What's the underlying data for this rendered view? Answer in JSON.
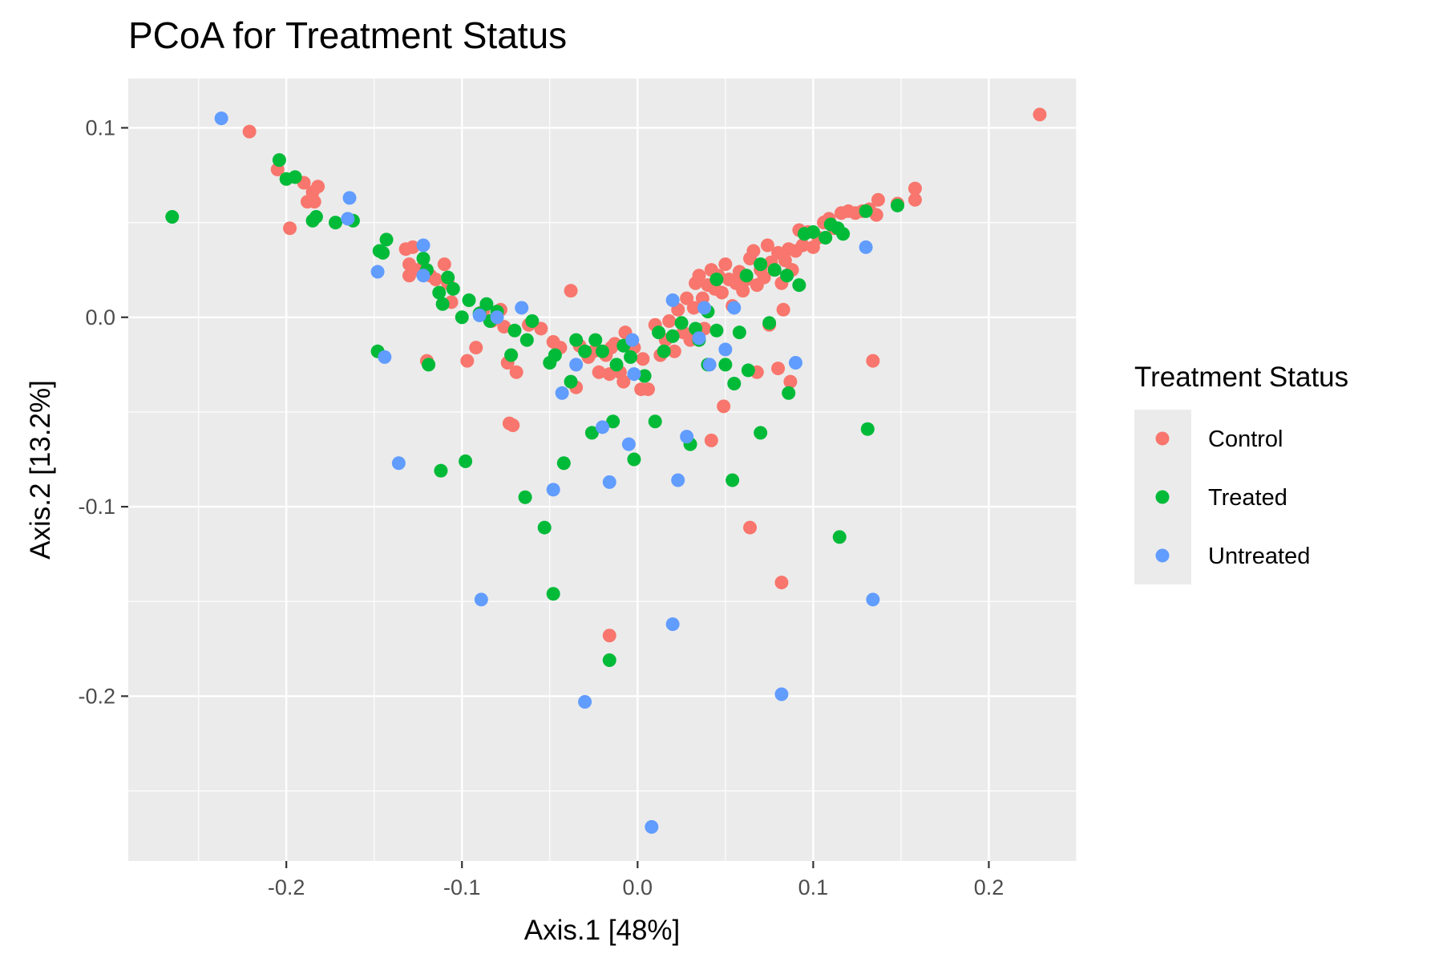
{
  "chart_data": {
    "type": "scatter",
    "title": "PCoA for Treatment Status",
    "xlabel": "Axis.1   [48%]",
    "ylabel": "Axis.2   [13.2%]",
    "xlim": [
      -0.29,
      0.25
    ],
    "ylim": [
      -0.287,
      0.126
    ],
    "x_ticks": [
      -0.2,
      -0.1,
      0.0,
      0.1,
      0.2
    ],
    "x_tick_labels": [
      "-0.2",
      "-0.1",
      "0.0",
      "0.1",
      "0.2"
    ],
    "y_ticks": [
      0.1,
      0.0,
      -0.1,
      -0.2
    ],
    "y_tick_labels": [
      "0.1",
      "0.0",
      "-0.1",
      "-0.2"
    ],
    "grid": true,
    "legend": {
      "title": "Treatment Status",
      "position": "right"
    },
    "series": [
      {
        "name": "Control",
        "color": "#F8766D",
        "points": [
          [
            0.229,
            0.107
          ],
          [
            -0.221,
            0.098
          ],
          [
            -0.205,
            0.078
          ],
          [
            -0.198,
            0.047
          ],
          [
            -0.19,
            0.071
          ],
          [
            -0.188,
            0.061
          ],
          [
            -0.185,
            0.066
          ],
          [
            -0.184,
            0.061
          ],
          [
            -0.182,
            0.069
          ],
          [
            -0.132,
            0.036
          ],
          [
            -0.13,
            0.028
          ],
          [
            -0.13,
            0.022
          ],
          [
            -0.128,
            0.037
          ],
          [
            -0.125,
            0.025
          ],
          [
            -0.118,
            0.022
          ],
          [
            -0.115,
            0.02
          ],
          [
            -0.11,
            0.028
          ],
          [
            -0.108,
            0.018
          ],
          [
            -0.106,
            0.008
          ],
          [
            -0.097,
            -0.023
          ],
          [
            -0.092,
            -0.016
          ],
          [
            -0.088,
            0.003
          ],
          [
            -0.083,
            -0.002
          ],
          [
            -0.078,
            0.004
          ],
          [
            -0.076,
            -0.005
          ],
          [
            -0.074,
            -0.024
          ],
          [
            -0.073,
            -0.056
          ],
          [
            -0.071,
            -0.057
          ],
          [
            -0.069,
            -0.029
          ],
          [
            -0.062,
            -0.004
          ],
          [
            -0.055,
            -0.006
          ],
          [
            -0.048,
            -0.013
          ],
          [
            -0.044,
            -0.016
          ],
          [
            -0.038,
            0.014
          ],
          [
            -0.035,
            -0.037
          ],
          [
            -0.033,
            -0.015
          ],
          [
            -0.028,
            -0.021
          ],
          [
            -0.025,
            -0.018
          ],
          [
            -0.022,
            -0.029
          ],
          [
            -0.018,
            -0.02
          ],
          [
            -0.015,
            -0.016
          ],
          [
            -0.013,
            -0.014
          ],
          [
            -0.016,
            -0.03
          ],
          [
            -0.01,
            -0.029
          ],
          [
            -0.008,
            -0.034
          ],
          [
            -0.007,
            -0.008
          ],
          [
            -0.002,
            -0.016
          ],
          [
            0.002,
            -0.038
          ],
          [
            0.003,
            -0.022
          ],
          [
            0.006,
            -0.038
          ],
          [
            0.01,
            -0.004
          ],
          [
            0.013,
            -0.02
          ],
          [
            0.016,
            -0.012
          ],
          [
            0.018,
            -0.002
          ],
          [
            0.021,
            -0.018
          ],
          [
            0.023,
            0.004
          ],
          [
            0.026,
            -0.008
          ],
          [
            0.028,
            0.01
          ],
          [
            0.03,
            -0.012
          ],
          [
            0.032,
            0.005
          ],
          [
            0.033,
            0.018
          ],
          [
            0.035,
            0.022
          ],
          [
            0.037,
            0.01
          ],
          [
            0.038,
            -0.006
          ],
          [
            0.04,
            0.017
          ],
          [
            0.042,
            0.025
          ],
          [
            0.044,
            0.015
          ],
          [
            0.046,
            0.022
          ],
          [
            0.048,
            0.013
          ],
          [
            0.05,
            0.028
          ],
          [
            0.052,
            0.02
          ],
          [
            0.054,
            0.006
          ],
          [
            0.056,
            0.018
          ],
          [
            0.058,
            0.024
          ],
          [
            0.06,
            0.014
          ],
          [
            0.062,
            0.02
          ],
          [
            0.064,
            0.031
          ],
          [
            0.066,
            0.035
          ],
          [
            0.068,
            0.017
          ],
          [
            0.07,
            0.025
          ],
          [
            0.072,
            0.021
          ],
          [
            0.074,
            0.038
          ],
          [
            0.076,
            0.029
          ],
          [
            0.078,
            0.025
          ],
          [
            0.08,
            0.034
          ],
          [
            0.082,
            0.018
          ],
          [
            0.084,
            0.03
          ],
          [
            0.086,
            0.036
          ],
          [
            0.088,
            0.025
          ],
          [
            0.09,
            0.035
          ],
          [
            0.092,
            0.046
          ],
          [
            0.094,
            0.038
          ],
          [
            0.097,
            0.045
          ],
          [
            0.1,
            0.037
          ],
          [
            0.103,
            0.042
          ],
          [
            0.106,
            0.05
          ],
          [
            0.109,
            0.052
          ],
          [
            0.112,
            0.047
          ],
          [
            0.116,
            0.055
          ],
          [
            0.12,
            0.056
          ],
          [
            0.124,
            0.055
          ],
          [
            0.128,
            0.056
          ],
          [
            0.132,
            0.057
          ],
          [
            0.136,
            0.054
          ],
          [
            0.137,
            0.062
          ],
          [
            0.148,
            0.06
          ],
          [
            0.158,
            0.068
          ],
          [
            0.158,
            0.062
          ],
          [
            0.042,
            -0.065
          ],
          [
            0.049,
            -0.047
          ],
          [
            0.064,
            -0.111
          ],
          [
            0.068,
            -0.029
          ],
          [
            0.075,
            -0.004
          ],
          [
            0.08,
            -0.027
          ],
          [
            0.082,
            -0.14
          ],
          [
            0.083,
            0.004
          ],
          [
            0.087,
            -0.034
          ],
          [
            0.134,
            -0.023
          ],
          [
            -0.016,
            -0.168
          ],
          [
            -0.12,
            -0.023
          ]
        ]
      },
      {
        "name": "Treated",
        "color": "#00BA38",
        "points": [
          [
            -0.265,
            0.053
          ],
          [
            -0.204,
            0.083
          ],
          [
            -0.2,
            0.073
          ],
          [
            -0.195,
            0.074
          ],
          [
            -0.183,
            0.053
          ],
          [
            -0.185,
            0.051
          ],
          [
            -0.172,
            0.05
          ],
          [
            -0.162,
            0.051
          ],
          [
            -0.148,
            -0.018
          ],
          [
            -0.147,
            0.035
          ],
          [
            -0.145,
            0.034
          ],
          [
            -0.143,
            0.041
          ],
          [
            -0.122,
            0.031
          ],
          [
            -0.12,
            0.025
          ],
          [
            -0.119,
            -0.025
          ],
          [
            -0.113,
            0.013
          ],
          [
            -0.112,
            -0.081
          ],
          [
            -0.111,
            0.007
          ],
          [
            -0.108,
            0.021
          ],
          [
            -0.105,
            0.015
          ],
          [
            -0.1,
            0.0
          ],
          [
            -0.098,
            -0.076
          ],
          [
            -0.096,
            0.009
          ],
          [
            -0.09,
            0.002
          ],
          [
            -0.086,
            0.007
          ],
          [
            -0.084,
            -0.002
          ],
          [
            -0.08,
            0.003
          ],
          [
            -0.072,
            -0.02
          ],
          [
            -0.07,
            -0.007
          ],
          [
            -0.064,
            -0.095
          ],
          [
            -0.063,
            -0.012
          ],
          [
            -0.06,
            -0.002
          ],
          [
            -0.053,
            -0.111
          ],
          [
            -0.05,
            -0.024
          ],
          [
            -0.048,
            -0.146
          ],
          [
            -0.047,
            -0.02
          ],
          [
            -0.042,
            -0.077
          ],
          [
            -0.038,
            -0.034
          ],
          [
            -0.035,
            -0.012
          ],
          [
            -0.03,
            -0.018
          ],
          [
            -0.026,
            -0.061
          ],
          [
            -0.024,
            -0.012
          ],
          [
            -0.02,
            -0.018
          ],
          [
            -0.016,
            -0.181
          ],
          [
            -0.014,
            -0.055
          ],
          [
            -0.012,
            -0.025
          ],
          [
            -0.008,
            -0.015
          ],
          [
            -0.004,
            -0.021
          ],
          [
            -0.002,
            -0.075
          ],
          [
            0.004,
            -0.031
          ],
          [
            0.01,
            -0.055
          ],
          [
            0.012,
            -0.008
          ],
          [
            0.015,
            -0.018
          ],
          [
            0.02,
            -0.01
          ],
          [
            0.025,
            -0.003
          ],
          [
            0.03,
            -0.067
          ],
          [
            0.035,
            -0.012
          ],
          [
            0.04,
            -0.025
          ],
          [
            0.045,
            -0.007
          ],
          [
            0.05,
            -0.025
          ],
          [
            0.054,
            -0.086
          ],
          [
            0.055,
            -0.035
          ],
          [
            0.058,
            -0.008
          ],
          [
            0.063,
            -0.028
          ],
          [
            0.07,
            -0.061
          ],
          [
            0.075,
            -0.003
          ],
          [
            0.086,
            -0.04
          ],
          [
            0.092,
            0.017
          ],
          [
            0.095,
            0.044
          ],
          [
            0.1,
            0.045
          ],
          [
            0.107,
            0.042
          ],
          [
            0.11,
            0.049
          ],
          [
            0.114,
            0.047
          ],
          [
            0.117,
            0.044
          ],
          [
            0.13,
            0.056
          ],
          [
            0.131,
            -0.059
          ],
          [
            0.115,
            -0.116
          ],
          [
            0.148,
            0.059
          ],
          [
            0.062,
            0.022
          ],
          [
            0.07,
            0.028
          ],
          [
            0.078,
            0.025
          ],
          [
            0.085,
            0.022
          ],
          [
            0.045,
            0.02
          ],
          [
            0.04,
            0.003
          ],
          [
            0.033,
            -0.006
          ]
        ]
      },
      {
        "name": "Untreated",
        "color": "#619CFF",
        "points": [
          [
            -0.237,
            0.105
          ],
          [
            -0.164,
            0.063
          ],
          [
            -0.165,
            0.052
          ],
          [
            -0.148,
            0.024
          ],
          [
            -0.144,
            -0.021
          ],
          [
            -0.136,
            -0.077
          ],
          [
            -0.122,
            0.038
          ],
          [
            -0.122,
            0.022
          ],
          [
            -0.09,
            0.001
          ],
          [
            -0.089,
            -0.149
          ],
          [
            -0.08,
            0.0
          ],
          [
            -0.066,
            0.005
          ],
          [
            -0.048,
            -0.091
          ],
          [
            -0.043,
            -0.04
          ],
          [
            -0.03,
            -0.203
          ],
          [
            -0.035,
            -0.025
          ],
          [
            -0.02,
            -0.058
          ],
          [
            -0.016,
            -0.087
          ],
          [
            -0.005,
            -0.067
          ],
          [
            -0.003,
            -0.012
          ],
          [
            -0.002,
            -0.03
          ],
          [
            0.008,
            -0.269
          ],
          [
            0.02,
            -0.162
          ],
          [
            0.02,
            0.009
          ],
          [
            0.023,
            -0.086
          ],
          [
            0.028,
            -0.063
          ],
          [
            0.035,
            -0.011
          ],
          [
            0.038,
            0.005
          ],
          [
            0.041,
            -0.025
          ],
          [
            0.05,
            -0.017
          ],
          [
            0.055,
            0.005
          ],
          [
            0.082,
            -0.199
          ],
          [
            0.09,
            -0.024
          ],
          [
            0.13,
            0.037
          ],
          [
            0.134,
            -0.149
          ]
        ]
      }
    ]
  }
}
